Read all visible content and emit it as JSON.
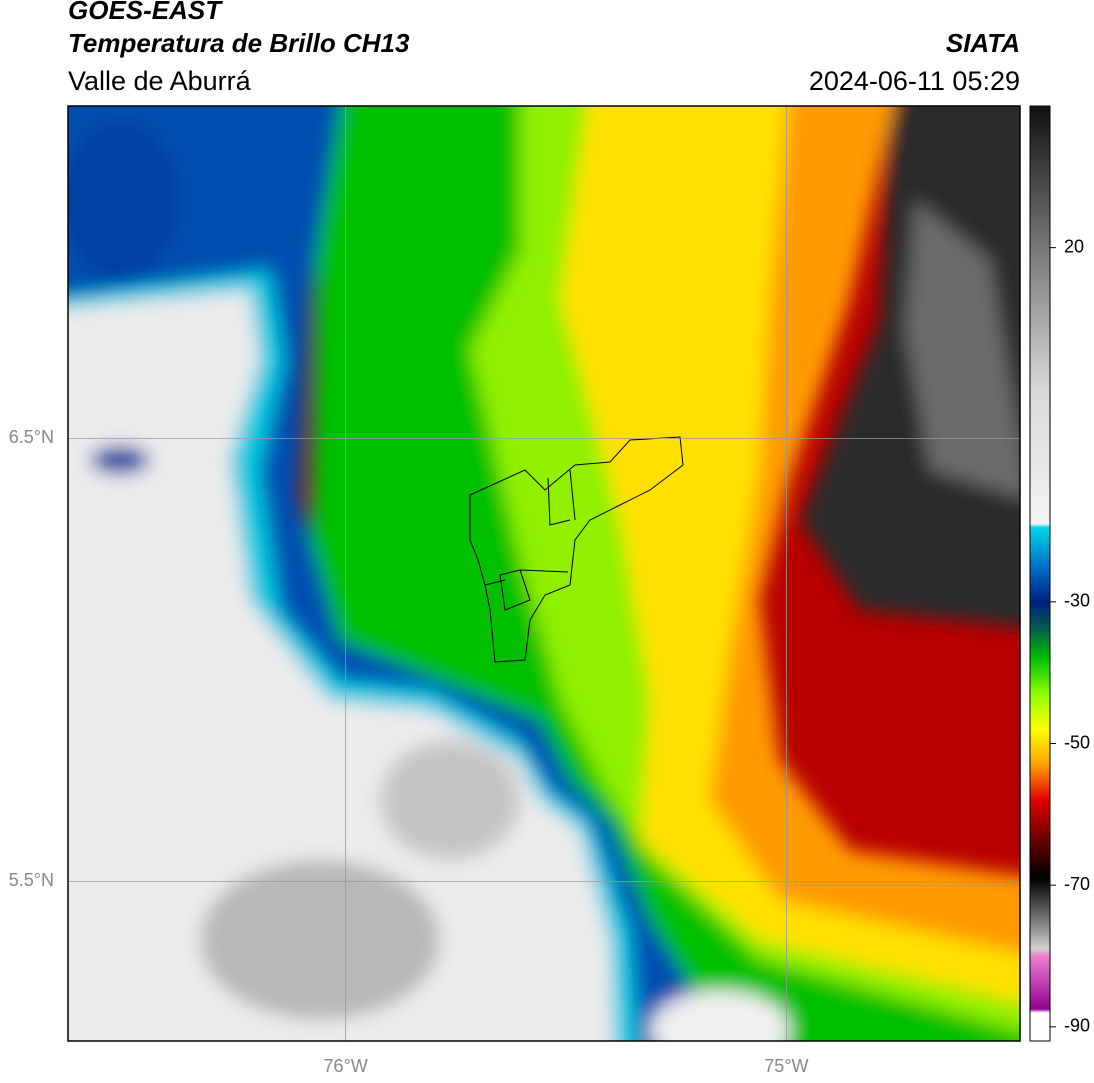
{
  "header": {
    "title": "GOES-EAST",
    "subtitle": "Temperatura de Brillo CH13",
    "region": "Valle de Aburrá",
    "source": "SIATA",
    "datetime": "2024-06-11 05:29"
  },
  "map": {
    "xlim": [
      -76.63,
      -74.47
    ],
    "ylim": [
      5.14,
      7.25
    ],
    "xticks": [
      {
        "value": -76,
        "label": "76°W"
      },
      {
        "value": -75,
        "label": "75°W"
      }
    ],
    "yticks": [
      {
        "value": 6.5,
        "label": "6.5°N"
      },
      {
        "value": 5.5,
        "label": "5.5°N"
      }
    ],
    "grid": true
  },
  "colorbar": {
    "clim": [
      -92,
      40
    ],
    "ticks": [
      20,
      -30,
      -50,
      -70,
      -90
    ],
    "stops": [
      {
        "value": 40,
        "color": "#111111"
      },
      {
        "value": 20,
        "color": "#777777"
      },
      {
        "value": 0,
        "color": "#d8d8d8"
      },
      {
        "value": -19,
        "color": "#f4f4f4"
      },
      {
        "value": -19.5,
        "color": "#00d8e8"
      },
      {
        "value": -25,
        "color": "#0070c8"
      },
      {
        "value": -30,
        "color": "#002080"
      },
      {
        "value": -34,
        "color": "#006048"
      },
      {
        "value": -38,
        "color": "#00c000"
      },
      {
        "value": -43,
        "color": "#90ff00"
      },
      {
        "value": -48,
        "color": "#ffff00"
      },
      {
        "value": -53,
        "color": "#ffa000"
      },
      {
        "value": -58,
        "color": "#e00000"
      },
      {
        "value": -64,
        "color": "#600000"
      },
      {
        "value": -69,
        "color": "#000000"
      },
      {
        "value": -73,
        "color": "#505050"
      },
      {
        "value": -79,
        "color": "#d0d0d0"
      },
      {
        "value": -80,
        "color": "#f080d0"
      },
      {
        "value": -87.5,
        "color": "#900090"
      },
      {
        "value": -88,
        "color": "#ffffff"
      },
      {
        "value": -92,
        "color": "#ffffff"
      }
    ]
  }
}
